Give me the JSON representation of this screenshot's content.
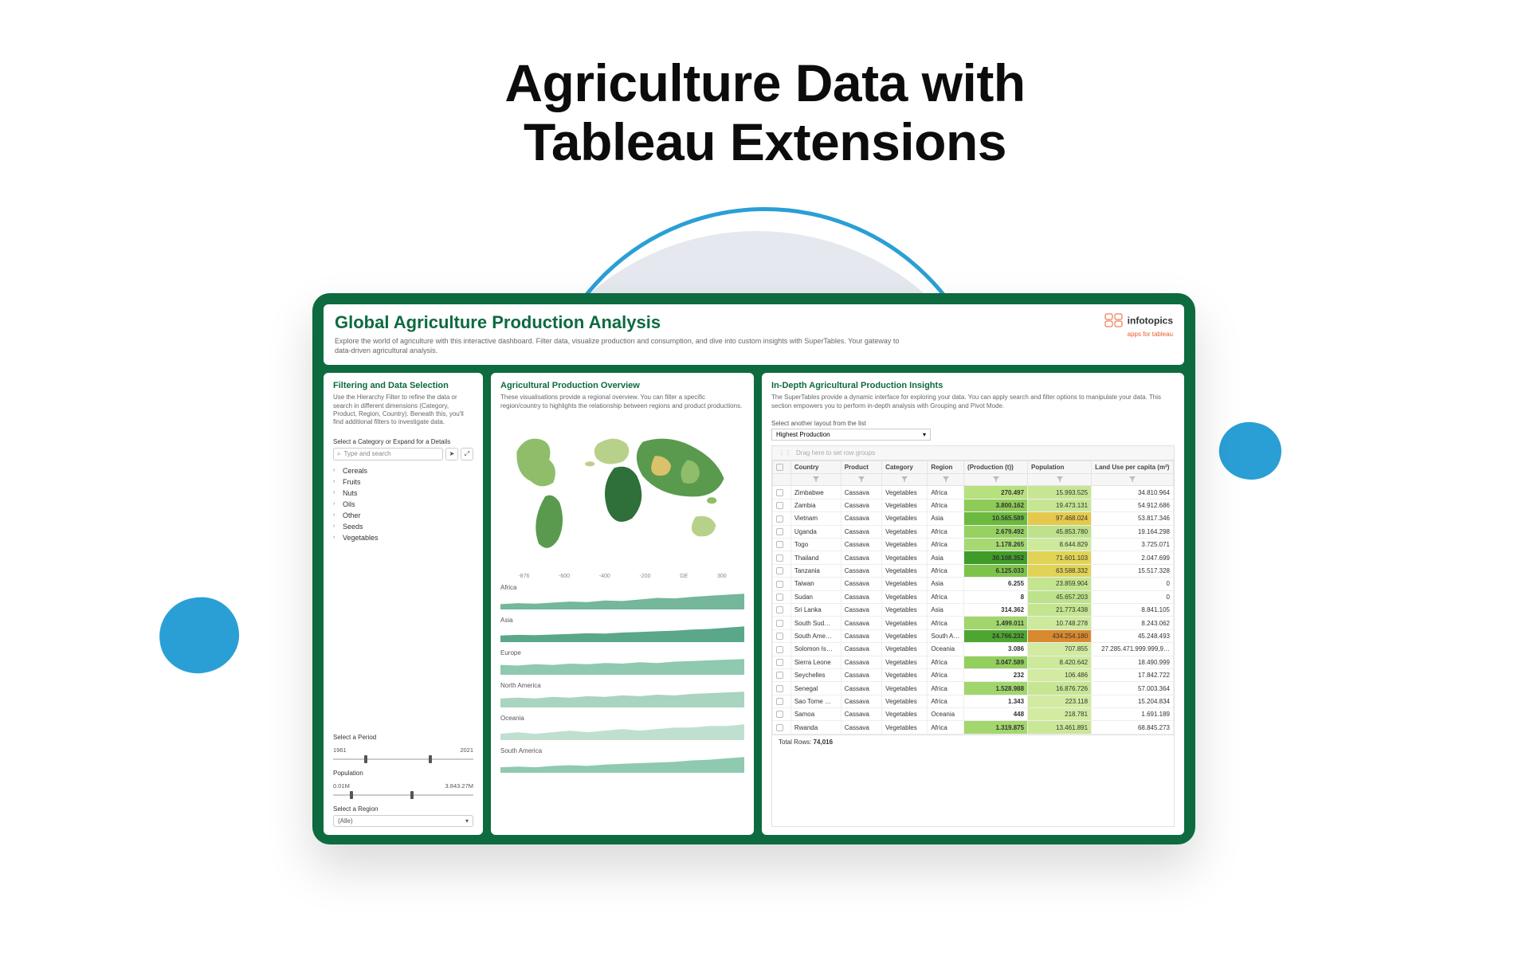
{
  "hero": {
    "line1": "Agriculture Data with",
    "line2": "Tableau Extensions"
  },
  "colors": {
    "dashboard_bg": "#0d6b3f",
    "accent_blue": "#2a9fd6",
    "grey_circle": "#e5e8ee",
    "map_palette": [
      "#2f6f3a",
      "#5a9a4f",
      "#8fbd6a",
      "#b8d18a",
      "#d9c26a",
      "#e8e5b4"
    ]
  },
  "logo": {
    "name": "infotopics",
    "sub": "apps for tableau"
  },
  "header": {
    "title": "Global Agriculture Production Analysis",
    "subtitle": "Explore the world of agriculture with this interactive dashboard. Filter data, visualize production and consumption, and dive into custom insights with SuperTables. Your gateway to data-driven agricultural analysis."
  },
  "filter": {
    "title": "Filtering and Data Selection",
    "desc": "Use the Hierarchy Filter to refine the data or search in different dimensions (Category, Product, Region, Country). Beneath this, you'll find additional filters to investigate data.",
    "select_label": "Select a Category or Expand for a Details",
    "search_placeholder": "Type and search",
    "tree": [
      "Cereals",
      "Fruits",
      "Nuts",
      "Oils",
      "Other",
      "Seeds",
      "Vegetables"
    ],
    "period_label": "Select a Period",
    "period_min": "1961",
    "period_max": "2021",
    "pop_label": "Population",
    "pop_min": "0.01M",
    "pop_max": "3.843.27M",
    "region_label": "Select a Region",
    "region_value": "(Alle)"
  },
  "overview": {
    "title": "Agricultural Production Overview",
    "desc": "These visualisations provide a regional overview. You can filter a specific region/country to highlights the relationship between regions and product productions.",
    "axis_ticks": [
      "-876",
      "-600",
      "-400",
      "-200",
      "GE",
      "300"
    ],
    "regions": [
      {
        "name": "Africa",
        "series": [
          10,
          12,
          11,
          13,
          15,
          14,
          17,
          16,
          19,
          22,
          21,
          24,
          26,
          28,
          30
        ],
        "fill": "#74b79a"
      },
      {
        "name": "Asia",
        "series": [
          20,
          22,
          21,
          23,
          25,
          27,
          26,
          29,
          31,
          33,
          35,
          38,
          40,
          44,
          48
        ],
        "fill": "#5aa889"
      },
      {
        "name": "Europe",
        "series": [
          15,
          14,
          16,
          15,
          17,
          16,
          18,
          17,
          19,
          18,
          20,
          21,
          22,
          23,
          24
        ],
        "fill": "#8fc9b0"
      },
      {
        "name": "North America",
        "series": [
          12,
          13,
          12,
          14,
          13,
          15,
          14,
          16,
          15,
          17,
          16,
          18,
          19,
          20,
          21
        ],
        "fill": "#a8d4c0"
      },
      {
        "name": "Oceania",
        "series": [
          4,
          5,
          4,
          5,
          6,
          5,
          6,
          7,
          6,
          7,
          8,
          8,
          9,
          9,
          10
        ],
        "fill": "#bfe0d0"
      },
      {
        "name": "South America",
        "series": [
          8,
          9,
          8,
          10,
          11,
          10,
          12,
          13,
          14,
          15,
          16,
          18,
          19,
          21,
          23
        ],
        "fill": "#8fc9b0"
      }
    ]
  },
  "insights": {
    "title": "In-Depth Agricultural Production Insights",
    "desc": "The SuperTables provide a dynamic interface for exploring your data. You can apply search and filter options to manipulate your data. This section empowers you to perform in-depth analysis with Grouping and Pivot Mode.",
    "layout_label": "Select another layout from the list",
    "layout_value": "Highest Production",
    "group_hint": "Drag here to set row groups",
    "columns": [
      "Country",
      "Product",
      "Category",
      "Region",
      "(Production (t))",
      "Population",
      "Land Use per capita (m²)"
    ],
    "col_widths": [
      "11%",
      "9%",
      "10%",
      "8%",
      "14%",
      "14%",
      "18%"
    ],
    "rows": [
      {
        "country": "Zimbabwe",
        "product": "Cassava",
        "category": "Vegetables",
        "region": "Africa",
        "prod": "270.497",
        "prod_c": "#b7e07e",
        "pop": "15.993.525",
        "pop_c": "#c7e694",
        "land": "34.810.964"
      },
      {
        "country": "Zambia",
        "product": "Cassava",
        "category": "Vegetables",
        "region": "Africa",
        "prod": "3.800.162",
        "prod_c": "#8ecb57",
        "pop": "19.473.131",
        "pop_c": "#c7e694",
        "land": "54.912.686"
      },
      {
        "country": "Vietnam",
        "product": "Cassava",
        "category": "Vegetables",
        "region": "Asia",
        "prod": "10.565.589",
        "prod_c": "#6cb93f",
        "pop": "97.468.024",
        "pop_c": "#e4c94c",
        "land": "53.817.346"
      },
      {
        "country": "Uganda",
        "product": "Cassava",
        "category": "Vegetables",
        "region": "Africa",
        "prod": "2.679.492",
        "prod_c": "#97d162",
        "pop": "45.853.780",
        "pop_c": "#bde28b",
        "land": "19.164.298"
      },
      {
        "country": "Togo",
        "product": "Cassava",
        "category": "Vegetables",
        "region": "Africa",
        "prod": "1.178.265",
        "prod_c": "#a6d971",
        "pop": "8.644.829",
        "pop_c": "#cde99c",
        "land": "3.725.071"
      },
      {
        "country": "Thailand",
        "product": "Cassava",
        "category": "Vegetables",
        "region": "Asia",
        "prod": "30.108.352",
        "prod_c": "#3f9c28",
        "pop": "71.601.103",
        "pop_c": "#e1d356",
        "land": "2.047.699"
      },
      {
        "country": "Tanzania",
        "product": "Cassava",
        "category": "Vegetables",
        "region": "Africa",
        "prod": "6.125.033",
        "prod_c": "#7cc34a",
        "pop": "63.588.332",
        "pop_c": "#e1d356",
        "land": "15.517.328"
      },
      {
        "country": "Taiwan",
        "product": "Cassava",
        "category": "Vegetables",
        "region": "Asia",
        "prod": "6.255",
        "prod_c": "",
        "pop": "23.859.904",
        "pop_c": "#c4e590",
        "land": "0"
      },
      {
        "country": "Sudan",
        "product": "Cassava",
        "category": "Vegetables",
        "region": "Africa",
        "prod": "8",
        "prod_c": "",
        "pop": "45.657.203",
        "pop_c": "#bde28b",
        "land": "0"
      },
      {
        "country": "Sri Lanka",
        "product": "Cassava",
        "category": "Vegetables",
        "region": "Asia",
        "prod": "314.362",
        "prod_c": "",
        "pop": "21.773.438",
        "pop_c": "#c4e590",
        "land": "8.841.105"
      },
      {
        "country": "South Sud…",
        "product": "Cassava",
        "category": "Vegetables",
        "region": "Africa",
        "prod": "1.499.011",
        "prod_c": "#a0d66b",
        "pop": "10.748.278",
        "pop_c": "#cde99c",
        "land": "8.243.062"
      },
      {
        "country": "South Ame…",
        "product": "Cassava",
        "category": "Vegetables",
        "region": "South A…",
        "prod": "24.766.232",
        "prod_c": "#4ea630",
        "pop": "434.254.180",
        "pop_c": "#d88a2e",
        "land": "45.248.493"
      },
      {
        "country": "Solomon Is…",
        "product": "Cassava",
        "category": "Vegetables",
        "region": "Oceania",
        "prod": "3.086",
        "prod_c": "",
        "pop": "707.855",
        "pop_c": "#d2eba1",
        "land": "27.285.471.999.999,9…"
      },
      {
        "country": "Sierra Leone",
        "product": "Cassava",
        "category": "Vegetables",
        "region": "Africa",
        "prod": "3.047.589",
        "prod_c": "#92cf5d",
        "pop": "8.420.642",
        "pop_c": "#cde99c",
        "land": "18.490.999"
      },
      {
        "country": "Seychelles",
        "product": "Cassava",
        "category": "Vegetables",
        "region": "Africa",
        "prod": "232",
        "prod_c": "",
        "pop": "106.486",
        "pop_c": "#d2eba1",
        "land": "17.842.722"
      },
      {
        "country": "Senegal",
        "product": "Cassava",
        "category": "Vegetables",
        "region": "Africa",
        "prod": "1.528.988",
        "prod_c": "#a0d66b",
        "pop": "16.876.726",
        "pop_c": "#c7e694",
        "land": "57.003.364"
      },
      {
        "country": "Sao Tome …",
        "product": "Cassava",
        "category": "Vegetables",
        "region": "Africa",
        "prod": "1.343",
        "prod_c": "",
        "pop": "223.118",
        "pop_c": "#d2eba1",
        "land": "15.204.834"
      },
      {
        "country": "Samoa",
        "product": "Cassava",
        "category": "Vegetables",
        "region": "Oceania",
        "prod": "448",
        "prod_c": "",
        "pop": "218.781",
        "pop_c": "#d2eba1",
        "land": "1.691.189"
      },
      {
        "country": "Rwanda",
        "product": "Cassava",
        "category": "Vegetables",
        "region": "Africa",
        "prod": "1.319.875",
        "prod_c": "#a3d76e",
        "pop": "13.461.891",
        "pop_c": "#cae797",
        "land": "68.845.273"
      }
    ],
    "total_label": "Total Rows:",
    "total_value": "74,016"
  }
}
